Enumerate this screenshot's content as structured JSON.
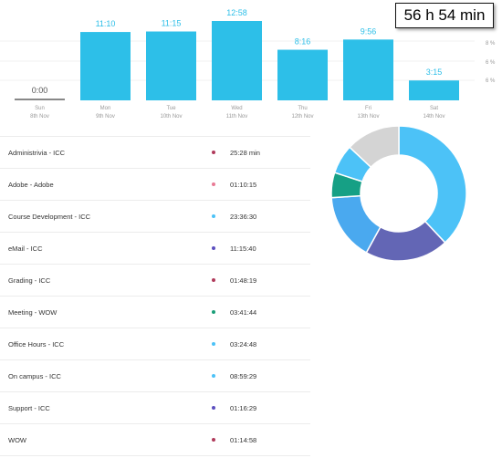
{
  "total": "56 h 54 min",
  "pct_labels": [
    "8 %",
    "6 %",
    "6 %"
  ],
  "chart_data": {
    "type": "bar",
    "days": [
      "Sun",
      "Mon",
      "Tue",
      "Wed",
      "Thu",
      "Fri",
      "Sat"
    ],
    "dates": [
      "8th Nov",
      "9th Nov",
      "10th Nov",
      "11th Nov",
      "12th Nov",
      "13th Nov",
      "14th Nov"
    ],
    "value_labels": [
      "0:00",
      "11:10",
      "11:15",
      "12:58",
      "8:16",
      "9:56",
      "3:15"
    ],
    "values_minutes": [
      0,
      670,
      675,
      778,
      496,
      596,
      195
    ],
    "bar_color": "#2dbfe8",
    "zero_bar_color": "#888888"
  },
  "activities": [
    {
      "name": "Administrivia - ICC",
      "time": "25:28 min",
      "color": "#b03a5b"
    },
    {
      "name": "Adobe - Adobe",
      "time": "01:10:15",
      "color": "#e87a95"
    },
    {
      "name": "Course Development - ICC",
      "time": "23:36:30",
      "color": "#4cc2f7"
    },
    {
      "name": "eMail - ICC",
      "time": "11:15:40",
      "color": "#5c4fbf"
    },
    {
      "name": "Grading - ICC",
      "time": "01:48:19",
      "color": "#b03a5b"
    },
    {
      "name": "Meeting - WOW",
      "time": "03:41:44",
      "color": "#1a9e78"
    },
    {
      "name": "Office Hours - ICC",
      "time": "03:24:48",
      "color": "#4cc2f7"
    },
    {
      "name": "On campus - ICC",
      "time": "08:59:29",
      "color": "#4cc2f7"
    },
    {
      "name": "Support - ICC",
      "time": "01:16:29",
      "color": "#5c4fbf"
    },
    {
      "name": "WOW",
      "time": "01:14:58",
      "color": "#b03a5b"
    }
  ],
  "donut_data": {
    "type": "pie",
    "slices": [
      {
        "value": 38,
        "color": "#4cc2f7"
      },
      {
        "value": 20,
        "color": "#6366b5"
      },
      {
        "value": 16,
        "color": "#4aa9ef"
      },
      {
        "value": 6,
        "color": "#16a085"
      },
      {
        "value": 7,
        "color": "#4cc2f7"
      },
      {
        "value": 13,
        "color": "#d4d4d4"
      }
    ]
  }
}
